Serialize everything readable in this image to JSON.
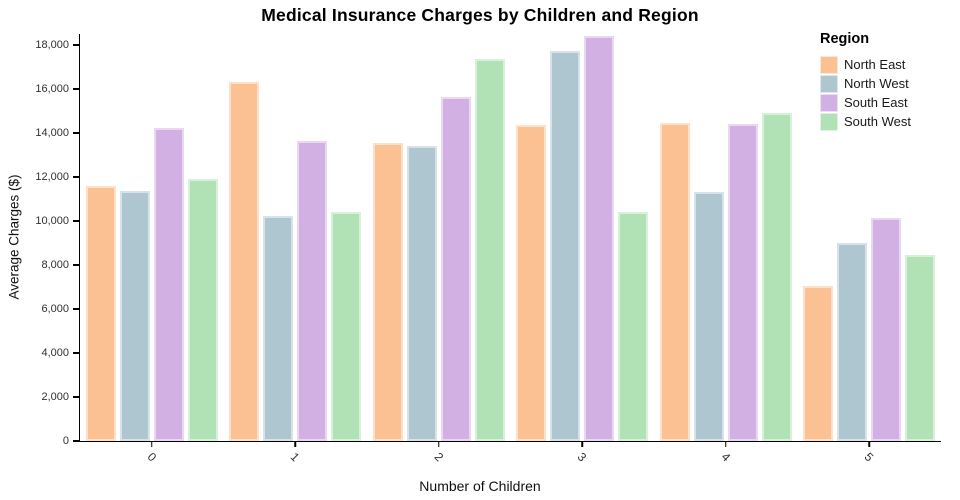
{
  "title": "Medical Insurance Charges by Children and Region",
  "x_axis": {
    "title": "Number of Children"
  },
  "y_axis": {
    "title": "Average Charges ($)",
    "tick_labels": [
      "0",
      "2,000",
      "4,000",
      "6,000",
      "8,000",
      "10,000",
      "12,000",
      "14,000",
      "16,000",
      "18,000"
    ]
  },
  "legend": {
    "title": "Region",
    "items": [
      {
        "label": "North East",
        "color": "#FBC193"
      },
      {
        "label": "North West",
        "color": "#AEC6D0"
      },
      {
        "label": "South East",
        "color": "#D3B0E4"
      },
      {
        "label": "South West",
        "color": "#B0E2B6"
      }
    ]
  },
  "chart_data": {
    "type": "bar",
    "title": "Medical Insurance Charges by Children and Region",
    "xlabel": "Number of Children",
    "ylabel": "Average Charges ($)",
    "categories": [
      "0",
      "1",
      "2",
      "3",
      "4",
      "5"
    ],
    "series": [
      {
        "name": "North East",
        "color": "#FBC193",
        "values": [
          11600,
          16310,
          13550,
          14360,
          14440,
          7050
        ]
      },
      {
        "name": "North West",
        "color": "#AEC6D0",
        "values": [
          11360,
          10210,
          13420,
          17720,
          11320,
          8980
        ]
      },
      {
        "name": "South East",
        "color": "#D3B0E4",
        "values": [
          14240,
          13650,
          15650,
          18410,
          14410,
          10140
        ]
      },
      {
        "name": "South West",
        "color": "#B0E2B6",
        "values": [
          11930,
          10390,
          17380,
          10410,
          14910,
          8440
        ]
      }
    ],
    "y_ticks": [
      0,
      2000,
      4000,
      6000,
      8000,
      10000,
      12000,
      14000,
      16000,
      18000
    ],
    "ylim": [
      0,
      18500
    ],
    "grid": false,
    "legend_position": "top-right",
    "x_label_angle": 45
  }
}
